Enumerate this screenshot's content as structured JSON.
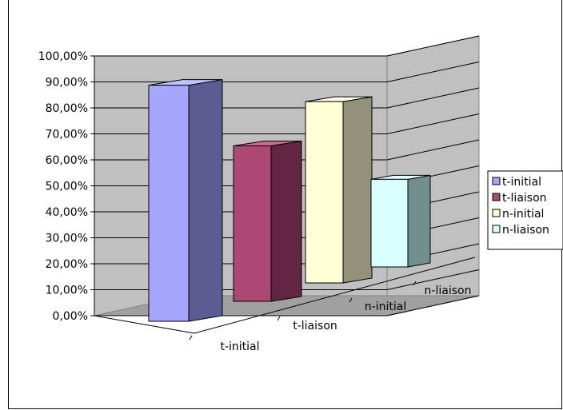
{
  "chart_data": {
    "type": "bar",
    "title": "",
    "xlabel": "",
    "ylabel": "",
    "ylim": [
      0,
      100
    ],
    "y_tick_step": 10,
    "y_tick_format": "percent-comma-2",
    "grid": true,
    "legend_position": "right",
    "categories": [
      "t-initial",
      "t-liaison",
      "n-initial",
      "n-liaison"
    ],
    "series": [
      {
        "name": "t-initial",
        "values": [
          94,
          null,
          null,
          null
        ]
      },
      {
        "name": "t-liaison",
        "values": [
          null,
          66,
          null,
          null
        ]
      },
      {
        "name": "n-initial",
        "values": [
          null,
          null,
          82,
          null
        ]
      },
      {
        "name": "n-liaison",
        "values": [
          null,
          null,
          null,
          42
        ]
      }
    ],
    "colors": {
      "t-initial": {
        "front": "#a6a6fe",
        "side": "#5c5b92",
        "top": "#c2c2ff"
      },
      "t-liaison": {
        "front": "#ab4874",
        "side": "#622643",
        "top": "#c56a93"
      },
      "n-initial": {
        "front": "#ffffd6",
        "side": "#939179",
        "top": "#ffffe6"
      },
      "n-liaison": {
        "front": "#d7ffff",
        "side": "#718e8e",
        "top": "#e8ffff"
      }
    },
    "wall_color": "#c0c0c0",
    "floor_color": "#a0a0a0"
  }
}
